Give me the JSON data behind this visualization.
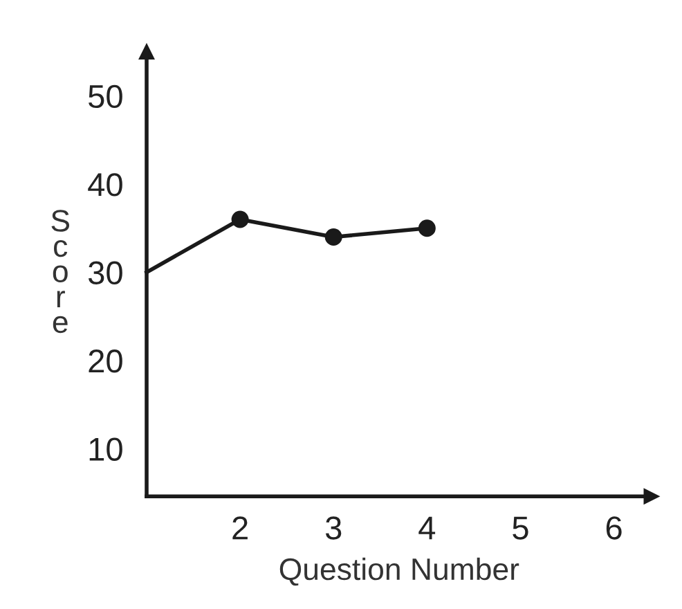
{
  "chart_data": {
    "type": "line",
    "xlabel": "Question Number",
    "ylabel": "Score",
    "x": [
      1,
      2,
      3,
      4
    ],
    "series": [
      {
        "color": "#1a1a1a",
        "values": [
          30,
          36,
          34,
          35
        ]
      }
    ],
    "marker": "circle",
    "line_style": "solid",
    "grid": false,
    "legend": false,
    "xlim": [
      1,
      6.4
    ],
    "ylim": [
      4.6,
      55
    ],
    "xticks": [
      2,
      3,
      4,
      5,
      6
    ],
    "yticks": [
      10,
      20,
      30,
      40,
      50
    ]
  }
}
